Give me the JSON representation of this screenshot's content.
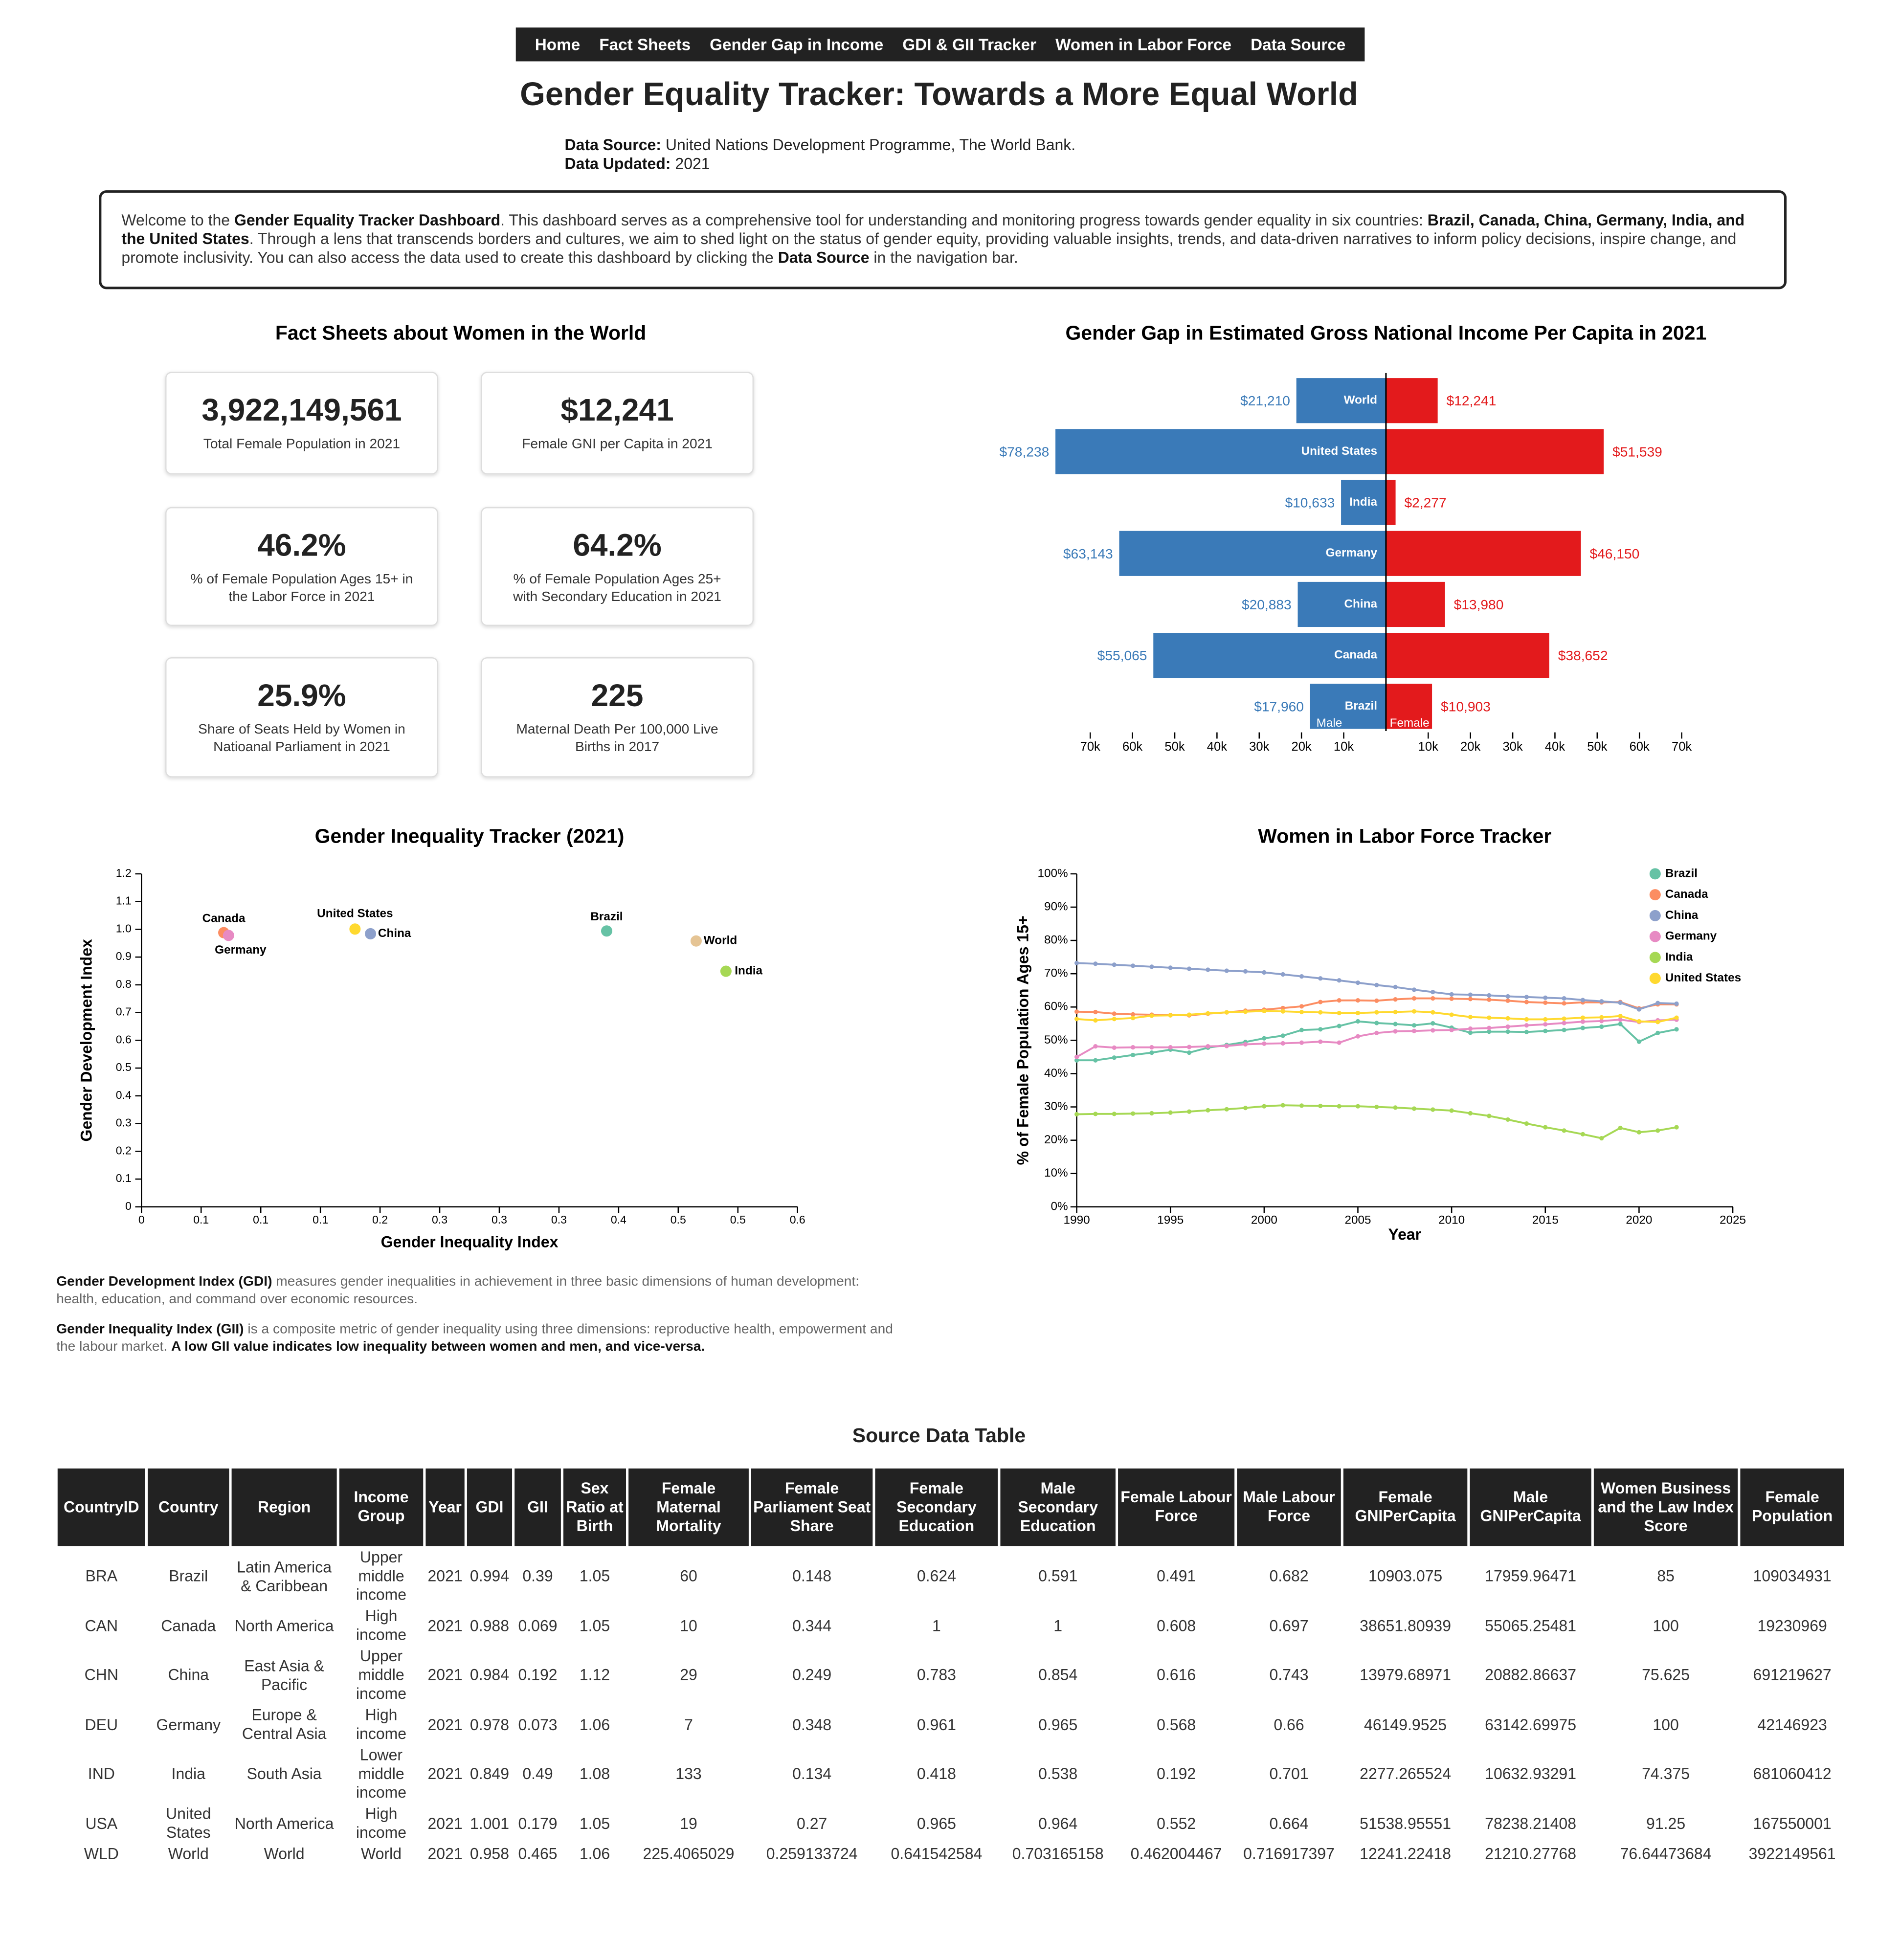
{
  "nav": [
    "Home",
    "Fact Sheets",
    "Gender Gap in Income",
    "GDI & GII Tracker",
    "Women in Labor Force",
    "Data Source"
  ],
  "header": {
    "title": "Gender Equality Tracker: Towards a More Equal World",
    "source_label": "Data Source:",
    "source": "United Nations Development Programme, The World Bank.",
    "updated_label": "Data Updated:",
    "updated": "2021"
  },
  "intro": [
    {
      "text": "Welcome to the ",
      "bold": false
    },
    {
      "text": "Gender Equality Tracker Dashboard",
      "bold": true
    },
    {
      "text": ". This dashboard serves as a comprehensive tool for understanding and monitoring progress towards gender equality in six countries: ",
      "bold": false
    },
    {
      "text": "Brazil, Canada, China, Germany, India, and the United States",
      "bold": true
    },
    {
      "text": ". Through a lens that transcends borders and cultures, we aim to shed light on the status of gender equity, providing valuable insights, trends, and data-driven narratives to inform policy decisions, inspire change, and promote inclusivity. You can also access the data used to create this dashboard by clicking the ",
      "bold": false
    },
    {
      "text": "Data Source",
      "bold": true
    },
    {
      "text": " in the navigation bar.",
      "bold": false
    }
  ],
  "fact_sheets": {
    "title": "Fact Sheets about Women in the World",
    "cards": [
      {
        "value": "3,922,149,561",
        "label": "Total Female Population in 2021"
      },
      {
        "value": "$12,241",
        "label": "Female GNI per Capita in 2021"
      },
      {
        "value": "46.2%",
        "label": "% of Female Population Ages 15+ in the Labor Force in 2021"
      },
      {
        "value": "64.2%",
        "label": "% of Female Population Ages 25+ with Secondary Education in 2021"
      },
      {
        "value": "25.9%",
        "label": "Share of Seats Held by Women in Natioanal Parliament in 2021"
      },
      {
        "value": "225",
        "label": "Maternal Death Per 100,000 Live Births in 2017"
      }
    ]
  },
  "chart_data": [
    {
      "type": "bar",
      "title": "Gender Gap in Estimated Gross National Income Per Capita in 2021",
      "categories": [
        "World",
        "United States",
        "India",
        "Germany",
        "China",
        "Canada",
        "Brazil"
      ],
      "series": [
        {
          "name": "Male",
          "color": "#3a7ab8",
          "values": [
            21210,
            78238,
            10633,
            63143,
            20883,
            55065,
            17960
          ],
          "value_labels": [
            "$21,210",
            "$78,238",
            "$10,633",
            "$63,143",
            "$20,883",
            "$55,065",
            "$17,960"
          ]
        },
        {
          "name": "Female",
          "color": "#e31a1c",
          "values": [
            12241,
            51539,
            2277,
            46150,
            13980,
            38652,
            10903
          ],
          "value_labels": [
            "$12,241",
            "$51,539",
            "$2,277",
            "$46,150",
            "$13,980",
            "$38,652",
            "$10,903"
          ]
        }
      ],
      "xlim": [
        0,
        78238
      ],
      "xticks": [
        {
          "value": 10000,
          "label": "10k"
        },
        {
          "value": 20000,
          "label": "20k"
        },
        {
          "value": 30000,
          "label": "30k"
        },
        {
          "value": 40000,
          "label": "40k"
        },
        {
          "value": 50000,
          "label": "50k"
        },
        {
          "value": 60000,
          "label": "60k"
        },
        {
          "value": 70000,
          "label": "70k"
        }
      ]
    },
    {
      "type": "scatter",
      "title": "Gender Inequality Tracker (2021)",
      "x_label": "Gender Inequality Index",
      "y_label": "Gender Development Index",
      "categories": [
        "Canada",
        "Germany",
        "United States",
        "China",
        "Brazil",
        "World",
        "India"
      ],
      "x": [
        0.069,
        0.073,
        0.179,
        0.192,
        0.39,
        0.465,
        0.49
      ],
      "values": [
        0.988,
        0.978,
        1.001,
        0.984,
        0.994,
        0.958,
        0.849
      ],
      "colors": [
        "#fc8d62",
        "#e78ac3",
        "#ffd92f",
        "#8da0cb",
        "#66c2a5",
        "#e5c494",
        "#a6d854"
      ],
      "xlim": [
        0,
        0.55
      ],
      "xticks": [
        0,
        {
          "value": 0.05,
          "label": "0.1"
        },
        0.1,
        {
          "value": 0.15,
          "label": "0.1"
        },
        0.2,
        {
          "value": 0.25,
          "label": "0.3"
        },
        0.3,
        {
          "value": 0.35,
          "label": "0.3"
        },
        0.4,
        {
          "value": 0.45,
          "label": "0.5"
        },
        0.5,
        {
          "value": 0.55,
          "label": "0.6"
        }
      ],
      "ylim": [
        0,
        1.2
      ],
      "yticks": [
        0,
        0.1,
        0.2,
        0.3,
        0.4,
        0.5,
        0.6,
        0.7,
        0.8,
        0.9,
        {
          "value": 1,
          "label": "1.0"
        },
        1.1,
        1.2
      ]
    },
    {
      "type": "line",
      "title": "Women in Labor Force Tracker",
      "x_label": "Year",
      "y_label": "% of Female Population Ages 15+",
      "legend": "top-right",
      "x": [
        1990,
        1991,
        1992,
        1993,
        1994,
        1995,
        1996,
        1997,
        1998,
        1999,
        2000,
        2001,
        2002,
        2003,
        2004,
        2005,
        2006,
        2007,
        2008,
        2009,
        2010,
        2011,
        2012,
        2013,
        2014,
        2015,
        2016,
        2017,
        2018,
        2019,
        2020,
        2021,
        2022
      ],
      "series": [
        {
          "name": "Brazil",
          "color": "#66c2a5",
          "values": [
            44.0,
            44.0,
            44.8,
            45.6,
            46.3,
            47.2,
            46.3,
            47.8,
            48.6,
            49.5,
            50.6,
            51.4,
            53.1,
            53.3,
            54.3,
            55.7,
            55.2,
            54.9,
            54.5,
            55.1,
            53.8,
            52.3,
            52.6,
            52.6,
            52.5,
            52.8,
            53.1,
            53.7,
            54.1,
            54.9,
            49.6,
            52.2,
            53.3
          ]
        },
        {
          "name": "Canada",
          "color": "#fc8d62",
          "values": [
            58.6,
            58.5,
            58.0,
            57.8,
            57.7,
            57.6,
            57.5,
            58.0,
            58.4,
            58.9,
            59.2,
            59.7,
            60.2,
            61.5,
            62.0,
            62.0,
            61.9,
            62.3,
            62.6,
            62.6,
            62.5,
            62.4,
            62.2,
            61.9,
            61.5,
            61.3,
            61.1,
            61.4,
            61.4,
            61.5,
            59.6,
            60.8,
            60.8
          ]
        },
        {
          "name": "China",
          "color": "#8da0cb",
          "values": [
            73.2,
            73.0,
            72.7,
            72.4,
            72.1,
            71.8,
            71.5,
            71.2,
            70.9,
            70.7,
            70.4,
            69.8,
            69.2,
            68.6,
            68.0,
            67.3,
            66.6,
            66.0,
            65.2,
            64.5,
            63.8,
            63.7,
            63.5,
            63.2,
            63.0,
            62.8,
            62.6,
            62.1,
            61.7,
            61.3,
            59.3,
            61.2,
            61.0
          ]
        },
        {
          "name": "Germany",
          "color": "#e78ac3",
          "values": [
            45.0,
            48.2,
            47.8,
            47.9,
            47.9,
            47.9,
            48.0,
            48.2,
            48.3,
            48.8,
            49.0,
            49.1,
            49.3,
            49.6,
            49.3,
            51.2,
            52.2,
            52.7,
            52.8,
            53.0,
            53.1,
            53.5,
            53.7,
            54.1,
            54.5,
            54.8,
            55.2,
            55.6,
            55.8,
            56.2,
            55.5,
            56.0,
            56.2
          ]
        },
        {
          "name": "India",
          "color": "#a6d854",
          "values": [
            27.8,
            27.9,
            27.9,
            28.0,
            28.1,
            28.3,
            28.6,
            29.0,
            29.3,
            29.7,
            30.2,
            30.5,
            30.4,
            30.3,
            30.2,
            30.2,
            30.0,
            29.8,
            29.5,
            29.2,
            28.9,
            28.1,
            27.3,
            26.2,
            25.0,
            23.9,
            22.9,
            21.8,
            20.6,
            23.7,
            22.4,
            22.9,
            23.9
          ]
        },
        {
          "name": "United States",
          "color": "#ffd92f",
          "values": [
            56.4,
            56.0,
            56.4,
            56.7,
            57.4,
            57.5,
            57.7,
            58.1,
            58.4,
            58.6,
            58.8,
            58.7,
            58.5,
            58.4,
            58.2,
            58.2,
            58.4,
            58.5,
            58.7,
            58.4,
            57.7,
            57.0,
            56.8,
            56.6,
            56.3,
            56.3,
            56.5,
            56.8,
            56.9,
            57.3,
            55.7,
            55.5,
            56.8
          ]
        }
      ],
      "xlim": [
        1990,
        2025
      ],
      "xticks": [
        1990,
        1995,
        2000,
        2005,
        2010,
        2015,
        2020,
        2025
      ],
      "ylim": [
        0,
        100
      ],
      "yticks": [
        {
          "value": 0,
          "label": "0%"
        },
        {
          "value": 10,
          "label": "10%"
        },
        {
          "value": 20,
          "label": "20%"
        },
        {
          "value": 30,
          "label": "30%"
        },
        {
          "value": 40,
          "label": "40%"
        },
        {
          "value": 50,
          "label": "50%"
        },
        {
          "value": 60,
          "label": "60%"
        },
        {
          "value": 70,
          "label": "70%"
        },
        {
          "value": 80,
          "label": "80%"
        },
        {
          "value": 90,
          "label": "90%"
        },
        {
          "value": 100,
          "label": "100%"
        }
      ]
    }
  ],
  "notes": [
    [
      {
        "text": "Gender Development Index (GDI)",
        "bold": true
      },
      {
        "text": " measures gender inequalities in achievement in three basic dimensions of human development: health, education, and command over economic resources.",
        "bold": false
      }
    ],
    [
      {
        "text": "Gender Inequality Index (GII)",
        "bold": true
      },
      {
        "text": " is a composite metric of gender inequality using three dimensions: reproductive health, empowerment and the labour market. ",
        "bold": false
      },
      {
        "text": "A low GII value indicates low inequality between women and men, and vice-versa.",
        "bold": true
      }
    ]
  ],
  "table": {
    "title": "Source Data Table",
    "header": [
      "CountryID",
      "Country",
      "Region",
      "Income Group",
      "Year",
      "GDI",
      "GII",
      "Sex Ratio at Birth",
      "Female Maternal Mortality",
      "Female Parliament Seat Share",
      "Female Secondary Education",
      "Male Secondary Education",
      "Female Labour Force",
      "Male Labour Force",
      "Female GNIPerCapita",
      "Male GNIPerCapita",
      "Women Business and the Law Index Score",
      "Female Population"
    ],
    "rows": [
      [
        "BRA",
        "Brazil",
        "Latin America & Caribbean",
        "Upper middle income",
        "2021",
        "0.994",
        "0.39",
        "1.05",
        "60",
        "0.148",
        "0.624",
        "0.591",
        "0.491",
        "0.682",
        "10903.075",
        "17959.96471",
        "85",
        "109034931"
      ],
      [
        "CAN",
        "Canada",
        "North America",
        "High income",
        "2021",
        "0.988",
        "0.069",
        "1.05",
        "10",
        "0.344",
        "1",
        "1",
        "0.608",
        "0.697",
        "38651.80939",
        "55065.25481",
        "100",
        "19230969"
      ],
      [
        "CHN",
        "China",
        "East Asia & Pacific",
        "Upper middle income",
        "2021",
        "0.984",
        "0.192",
        "1.12",
        "29",
        "0.249",
        "0.783",
        "0.854",
        "0.616",
        "0.743",
        "13979.68971",
        "20882.86637",
        "75.625",
        "691219627"
      ],
      [
        "DEU",
        "Germany",
        "Europe & Central Asia",
        "High income",
        "2021",
        "0.978",
        "0.073",
        "1.06",
        "7",
        "0.348",
        "0.961",
        "0.965",
        "0.568",
        "0.66",
        "46149.9525",
        "63142.69975",
        "100",
        "42146923"
      ],
      [
        "IND",
        "India",
        "South Asia",
        "Lower middle income",
        "2021",
        "0.849",
        "0.49",
        "1.08",
        "133",
        "0.134",
        "0.418",
        "0.538",
        "0.192",
        "0.701",
        "2277.265524",
        "10632.93291",
        "74.375",
        "681060412"
      ],
      [
        "USA",
        "United States",
        "North America",
        "High income",
        "2021",
        "1.001",
        "0.179",
        "1.05",
        "19",
        "0.27",
        "0.965",
        "0.964",
        "0.552",
        "0.664",
        "51538.95551",
        "78238.21408",
        "91.25",
        "167550001"
      ],
      [
        "WLD",
        "World",
        "World",
        "World",
        "2021",
        "0.958",
        "0.465",
        "1.06",
        "225.4065029",
        "0.259133724",
        "0.641542584",
        "0.703165158",
        "0.462004467",
        "0.716917397",
        "12241.22418",
        "21210.27768",
        "76.64473684",
        "3922149561"
      ]
    ]
  }
}
